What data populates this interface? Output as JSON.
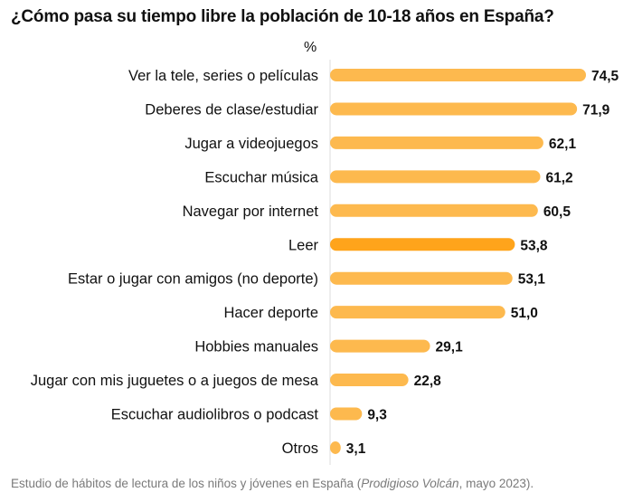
{
  "title": "¿Cómo pasa su tiempo libre la población de 10-18 años en España?",
  "footer": {
    "prefix": "Estudio de hábitos de lectura de los niños y jóvenes en España (",
    "source": "Prodigioso Volcán",
    "suffix": ", mayo 2023)."
  },
  "colors": {
    "bar": "#FDB94E",
    "bar_highlight": "#FFA41B",
    "axis": "#DDDDDD"
  },
  "chart_data": {
    "type": "bar",
    "orientation": "horizontal",
    "ylabel": "%",
    "xlim": [
      0,
      80
    ],
    "grid": false,
    "legend": "none",
    "highlight": "Leer",
    "categories": [
      "Ver la tele, series o películas",
      "Deberes de clase/estudiar",
      "Jugar a videojuegos",
      "Escuchar música",
      "Navegar por internet",
      "Leer",
      "Estar o jugar con amigos (no deporte)",
      "Hacer deporte",
      "Hobbies manuales",
      "Jugar con mis juguetes o a juegos de mesa",
      "Escuchar audiolibros o podcast",
      "Otros"
    ],
    "values": [
      74.5,
      71.9,
      62.1,
      61.2,
      60.5,
      53.8,
      53.1,
      51.0,
      29.1,
      22.8,
      9.3,
      3.1
    ],
    "value_labels": [
      "74,5",
      "71,9",
      "62,1",
      "61,2",
      "60,5",
      "53,8",
      "53,1",
      "51,0",
      "29,1",
      "22,8",
      "9,3",
      "3,1"
    ]
  }
}
